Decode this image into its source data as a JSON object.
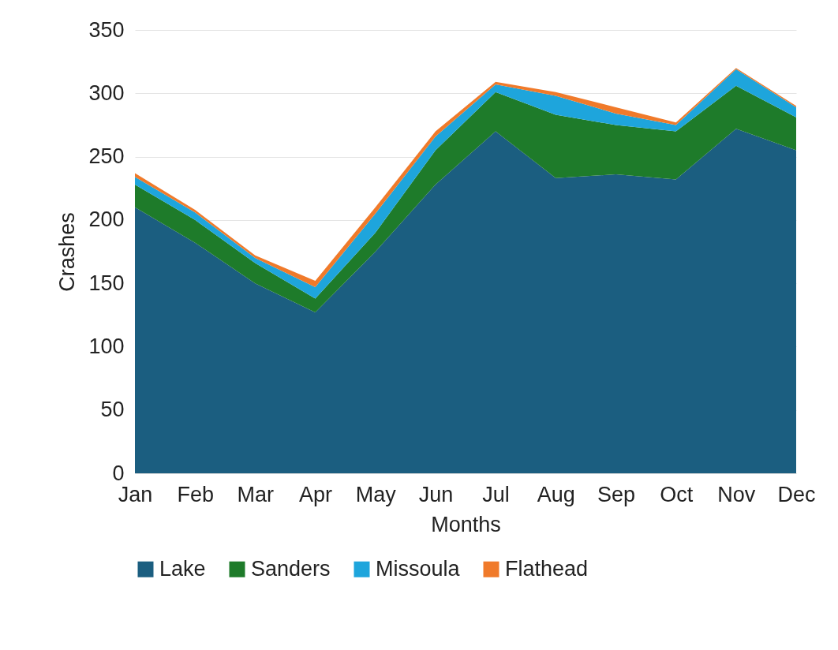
{
  "chart_data": {
    "type": "area",
    "stacked": true,
    "xlabel": "Months",
    "ylabel": "Crashes",
    "categories": [
      "Jan",
      "Feb",
      "Mar",
      "Apr",
      "May",
      "Jun",
      "Jul",
      "Aug",
      "Sep",
      "Oct",
      "Nov",
      "Dec"
    ],
    "series": [
      {
        "name": "Lake",
        "color": "#1b5e80",
        "values": [
          210,
          182,
          150,
          127,
          175,
          228,
          270,
          233,
          236,
          232,
          272,
          255
        ]
      },
      {
        "name": "Sanders",
        "color": "#1e7b2a",
        "values": [
          18,
          18,
          16,
          11,
          15,
          27,
          31,
          50,
          39,
          38,
          34,
          26
        ]
      },
      {
        "name": "Missoula",
        "color": "#1ea5dc",
        "values": [
          6,
          6,
          4,
          9,
          15,
          11,
          6,
          15,
          9,
          5,
          13,
          8
        ]
      },
      {
        "name": "Flathead",
        "color": "#f07a2a",
        "values": [
          3,
          2,
          2,
          5,
          5,
          4,
          2,
          3,
          5,
          2,
          1,
          1
        ]
      }
    ],
    "ylim": [
      0,
      350
    ],
    "yticks": [
      0,
      50,
      100,
      150,
      200,
      250,
      300,
      350
    ],
    "grid": "y",
    "legend": "bottom"
  }
}
